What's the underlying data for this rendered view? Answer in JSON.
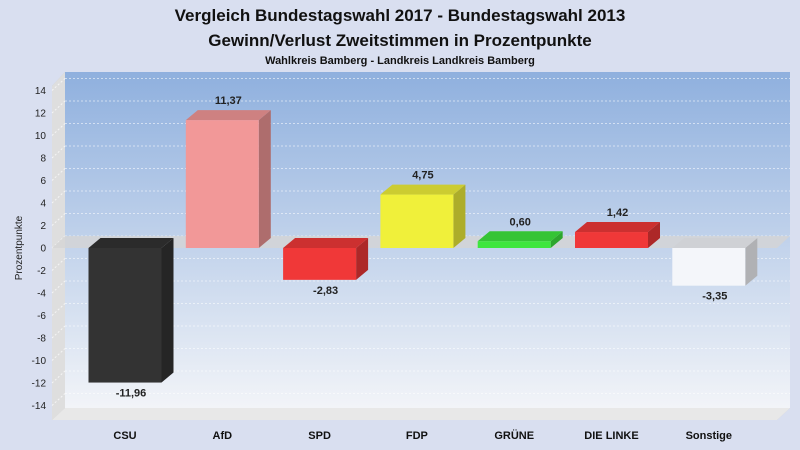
{
  "chart_data": {
    "type": "bar",
    "title": "Vergleich Bundestagswahl 2017 - Bundestagswahl 2013",
    "title2": "Gewinn/Verlust Zweitstimmen in Prozentpunkte",
    "subtitle": "Wahlkreis Bamberg - Landkreis Landkreis Bamberg",
    "ylabel": "Prozentpunkte",
    "xlabel": "",
    "ylim": [
      -15,
      15
    ],
    "yticks": [
      14,
      12,
      10,
      8,
      6,
      4,
      2,
      0,
      -2,
      -4,
      -6,
      -8,
      -10,
      -12,
      -14
    ],
    "grid": true,
    "categories": [
      "CSU",
      "AfD",
      "SPD",
      "FDP",
      "GRÜNE",
      "DIE LINKE",
      "Sonstige"
    ],
    "values": [
      -11.96,
      11.37,
      -2.83,
      4.75,
      0.6,
      1.42,
      -3.35
    ],
    "value_labels": [
      "-11,96",
      "11,37",
      "-2,83",
      "4,75",
      "0,60",
      "1,42",
      "-3,35"
    ],
    "colors": [
      "#333333",
      "#f29898",
      "#f03838",
      "#f0f03a",
      "#3ee63e",
      "#f03838",
      "#f4f6fa"
    ]
  }
}
